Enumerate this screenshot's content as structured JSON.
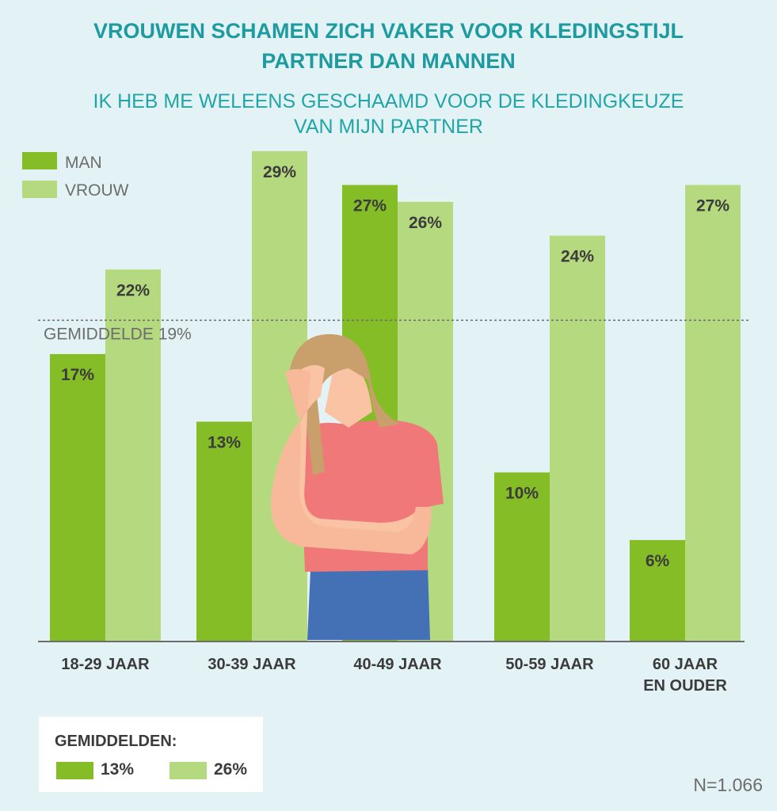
{
  "colors": {
    "man": "#85bd26",
    "vrouw": "#b5d97e",
    "title": "#1e9ba0",
    "text": "#3b3b3b",
    "average_line": "#6d6d6d"
  },
  "header": {
    "title_line1": "VROUWEN SCHAMEN ZICH VAKER VOOR KLEDINGSTIJL",
    "title_line2": "PARTNER DAN MANNEN",
    "subtitle_line1": "IK HEB ME WELEENS GESCHAAMD VOOR DE KLEDINGKEUZE",
    "subtitle_line2": "VAN MIJN PARTNER"
  },
  "chart_data": {
    "type": "bar",
    "title": "VROUWEN SCHAMEN ZICH VAKER VOOR KLEDINGSTIJL PARTNER DAN MANNEN",
    "categories": [
      [
        "18-29 JAAR"
      ],
      [
        "30-39 JAAR"
      ],
      [
        "40-49 JAAR"
      ],
      [
        "50-59 JAAR"
      ],
      [
        "60 JAAR",
        "EN OUDER"
      ]
    ],
    "series": [
      {
        "name": "MAN",
        "values": [
          17,
          13,
          27,
          10,
          6
        ],
        "labels": [
          "17%",
          "13%",
          "27%",
          "10%",
          "6%"
        ]
      },
      {
        "name": "VROUW",
        "values": [
          22,
          29,
          26,
          24,
          27
        ],
        "labels": [
          "22%",
          "29%",
          "26%",
          "24%",
          "27%"
        ]
      }
    ],
    "average": {
      "label": "GEMIDDELDE  19%",
      "value": 19
    },
    "ylim": [
      0,
      29
    ],
    "legend": "top-left",
    "grid": false
  },
  "footer": {
    "averages_title": "GEMIDDELDEN:",
    "man_avg": "13%",
    "vrouw_avg": "26%",
    "sample": "N=1.066"
  }
}
